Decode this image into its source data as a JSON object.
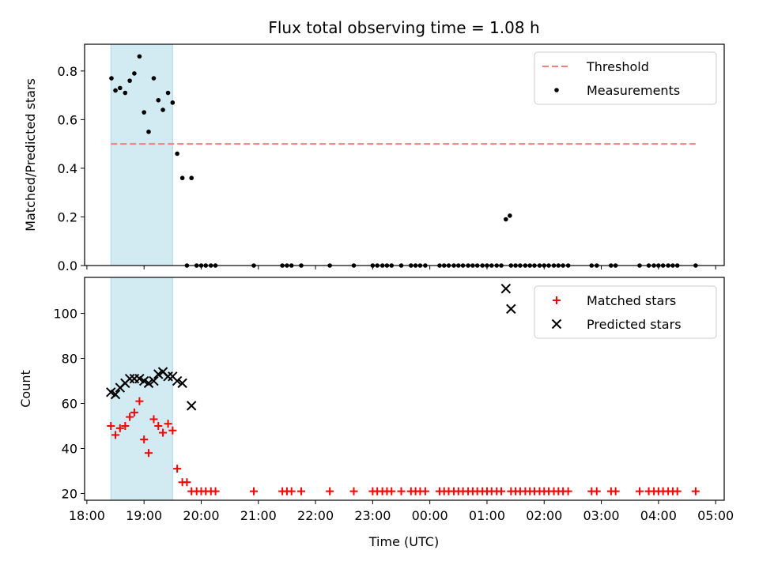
{
  "chart_data": {
    "title": "Flux total observing time = 1.08 h",
    "xlabel": "Time (UTC)",
    "x_unit": "UTC clock time (hours after midnight of start day)",
    "xlim": [
      17.96,
      29.15
    ],
    "x_ticks": [
      18,
      19,
      20,
      21,
      22,
      23,
      24,
      25,
      26,
      27,
      28,
      29
    ],
    "x_tick_labels": [
      "18:00",
      "19:00",
      "20:00",
      "21:00",
      "22:00",
      "23:00",
      "00:00",
      "01:00",
      "02:00",
      "03:00",
      "04:00",
      "05:00"
    ],
    "highlight_span": [
      18.42,
      19.5
    ],
    "highlight_color": "#add8e6",
    "panels": [
      {
        "type": "scatter",
        "ylabel": "Matched/Predicted stars",
        "ylim": [
          0.0,
          0.91
        ],
        "y_ticks": [
          0.0,
          0.2,
          0.4,
          0.6,
          0.8
        ],
        "y_tick_labels": [
          "0.0",
          "0.2",
          "0.4",
          "0.6",
          "0.8"
        ],
        "legend_position": "top-right",
        "threshold": {
          "name": "Threshold",
          "value": 0.5,
          "x_range": [
            18.42,
            28.65
          ],
          "color": "#f08080"
        },
        "series": [
          {
            "name": "Measurements",
            "color": "#000000",
            "marker": "dot",
            "points": [
              [
                18.43,
                0.77
              ],
              [
                18.5,
                0.72
              ],
              [
                18.58,
                0.73
              ],
              [
                18.67,
                0.71
              ],
              [
                18.75,
                0.76
              ],
              [
                18.83,
                0.79
              ],
              [
                18.92,
                0.86
              ],
              [
                19.0,
                0.63
              ],
              [
                19.08,
                0.55
              ],
              [
                19.17,
                0.77
              ],
              [
                19.25,
                0.68
              ],
              [
                19.33,
                0.64
              ],
              [
                19.42,
                0.71
              ],
              [
                19.5,
                0.67
              ],
              [
                19.58,
                0.46
              ],
              [
                19.67,
                0.36
              ],
              [
                19.83,
                0.36
              ],
              [
                19.75,
                0.0
              ],
              [
                19.92,
                0.0
              ],
              [
                20.0,
                0.0
              ],
              [
                20.08,
                0.0
              ],
              [
                20.17,
                0.0
              ],
              [
                20.25,
                0.0
              ],
              [
                20.92,
                0.0
              ],
              [
                21.42,
                0.0
              ],
              [
                21.5,
                0.0
              ],
              [
                21.58,
                0.0
              ],
              [
                21.75,
                0.0
              ],
              [
                22.25,
                0.0
              ],
              [
                22.67,
                0.0
              ],
              [
                23.0,
                0.0
              ],
              [
                23.08,
                0.0
              ],
              [
                23.17,
                0.0
              ],
              [
                23.25,
                0.0
              ],
              [
                23.33,
                0.0
              ],
              [
                23.5,
                0.0
              ],
              [
                23.67,
                0.0
              ],
              [
                23.75,
                0.0
              ],
              [
                23.83,
                0.0
              ],
              [
                23.92,
                0.0
              ],
              [
                24.17,
                0.0
              ],
              [
                24.25,
                0.0
              ],
              [
                24.33,
                0.0
              ],
              [
                24.42,
                0.0
              ],
              [
                24.5,
                0.0
              ],
              [
                24.58,
                0.0
              ],
              [
                24.67,
                0.0
              ],
              [
                24.75,
                0.0
              ],
              [
                24.83,
                0.0
              ],
              [
                24.92,
                0.0
              ],
              [
                25.0,
                0.0
              ],
              [
                25.08,
                0.0
              ],
              [
                25.17,
                0.0
              ],
              [
                25.25,
                0.0
              ],
              [
                25.42,
                0.0
              ],
              [
                25.5,
                0.0
              ],
              [
                25.58,
                0.0
              ],
              [
                25.67,
                0.0
              ],
              [
                25.75,
                0.0
              ],
              [
                25.83,
                0.0
              ],
              [
                25.92,
                0.0
              ],
              [
                26.0,
                0.0
              ],
              [
                26.08,
                0.0
              ],
              [
                26.17,
                0.0
              ],
              [
                26.25,
                0.0
              ],
              [
                26.33,
                0.0
              ],
              [
                26.42,
                0.0
              ],
              [
                26.83,
                0.0
              ],
              [
                26.92,
                0.0
              ],
              [
                27.17,
                0.0
              ],
              [
                27.25,
                0.0
              ],
              [
                27.67,
                0.0
              ],
              [
                27.83,
                0.0
              ],
              [
                27.92,
                0.0
              ],
              [
                28.0,
                0.0
              ],
              [
                28.08,
                0.0
              ],
              [
                28.17,
                0.0
              ],
              [
                28.25,
                0.0
              ],
              [
                28.33,
                0.0
              ],
              [
                28.65,
                0.0
              ],
              [
                25.33,
                0.19
              ],
              [
                25.4,
                0.205
              ]
            ]
          }
        ]
      },
      {
        "type": "scatter",
        "ylabel": "Count",
        "ylim": [
          17,
          116
        ],
        "y_ticks": [
          20,
          40,
          60,
          80,
          100
        ],
        "y_tick_labels": [
          "20",
          "40",
          "60",
          "80",
          "100"
        ],
        "legend_position": "top-right",
        "series": [
          {
            "name": "Matched stars",
            "color": "#ff0000",
            "marker": "plus",
            "points": [
              [
                18.42,
                50
              ],
              [
                18.5,
                46
              ],
              [
                18.58,
                49
              ],
              [
                18.67,
                50
              ],
              [
                18.75,
                54
              ],
              [
                18.83,
                56
              ],
              [
                18.92,
                61
              ],
              [
                19.0,
                44
              ],
              [
                19.08,
                38
              ],
              [
                19.17,
                53
              ],
              [
                19.25,
                50
              ],
              [
                19.33,
                47
              ],
              [
                19.42,
                51
              ],
              [
                19.5,
                48
              ],
              [
                19.58,
                31
              ],
              [
                19.67,
                25
              ],
              [
                19.75,
                25
              ],
              [
                19.83,
                21
              ],
              [
                19.92,
                21
              ],
              [
                20.0,
                21
              ],
              [
                20.08,
                21
              ],
              [
                20.17,
                21
              ],
              [
                20.25,
                21
              ],
              [
                20.92,
                21
              ],
              [
                21.42,
                21
              ],
              [
                21.5,
                21
              ],
              [
                21.58,
                21
              ],
              [
                21.75,
                21
              ],
              [
                22.25,
                21
              ],
              [
                22.67,
                21
              ],
              [
                23.0,
                21
              ],
              [
                23.08,
                21
              ],
              [
                23.17,
                21
              ],
              [
                23.25,
                21
              ],
              [
                23.33,
                21
              ],
              [
                23.5,
                21
              ],
              [
                23.67,
                21
              ],
              [
                23.75,
                21
              ],
              [
                23.83,
                21
              ],
              [
                23.92,
                21
              ],
              [
                24.17,
                21
              ],
              [
                24.25,
                21
              ],
              [
                24.33,
                21
              ],
              [
                24.42,
                21
              ],
              [
                24.5,
                21
              ],
              [
                24.58,
                21
              ],
              [
                24.67,
                21
              ],
              [
                24.75,
                21
              ],
              [
                24.83,
                21
              ],
              [
                24.92,
                21
              ],
              [
                25.0,
                21
              ],
              [
                25.08,
                21
              ],
              [
                25.17,
                21
              ],
              [
                25.25,
                21
              ],
              [
                25.42,
                21
              ],
              [
                25.5,
                21
              ],
              [
                25.58,
                21
              ],
              [
                25.67,
                21
              ],
              [
                25.75,
                21
              ],
              [
                25.83,
                21
              ],
              [
                25.92,
                21
              ],
              [
                26.0,
                21
              ],
              [
                26.08,
                21
              ],
              [
                26.17,
                21
              ],
              [
                26.25,
                21
              ],
              [
                26.33,
                21
              ],
              [
                26.42,
                21
              ],
              [
                26.83,
                21
              ],
              [
                26.92,
                21
              ],
              [
                27.17,
                21
              ],
              [
                27.25,
                21
              ],
              [
                27.67,
                21
              ],
              [
                27.83,
                21
              ],
              [
                27.92,
                21
              ],
              [
                28.0,
                21
              ],
              [
                28.08,
                21
              ],
              [
                28.17,
                21
              ],
              [
                28.25,
                21
              ],
              [
                28.33,
                21
              ],
              [
                28.65,
                21
              ]
            ]
          },
          {
            "name": "Predicted stars",
            "color": "#000000",
            "marker": "cross",
            "points": [
              [
                18.42,
                65
              ],
              [
                18.5,
                64
              ],
              [
                18.58,
                67
              ],
              [
                18.67,
                69
              ],
              [
                18.75,
                71
              ],
              [
                18.83,
                71
              ],
              [
                18.92,
                71
              ],
              [
                19.0,
                70
              ],
              [
                19.08,
                69
              ],
              [
                19.17,
                70
              ],
              [
                19.25,
                73
              ],
              [
                19.33,
                74
              ],
              [
                19.42,
                72
              ],
              [
                19.5,
                72
              ],
              [
                19.58,
                70
              ],
              [
                19.67,
                69
              ],
              [
                19.83,
                59
              ],
              [
                25.33,
                111
              ],
              [
                25.42,
                102
              ]
            ]
          }
        ]
      }
    ]
  }
}
